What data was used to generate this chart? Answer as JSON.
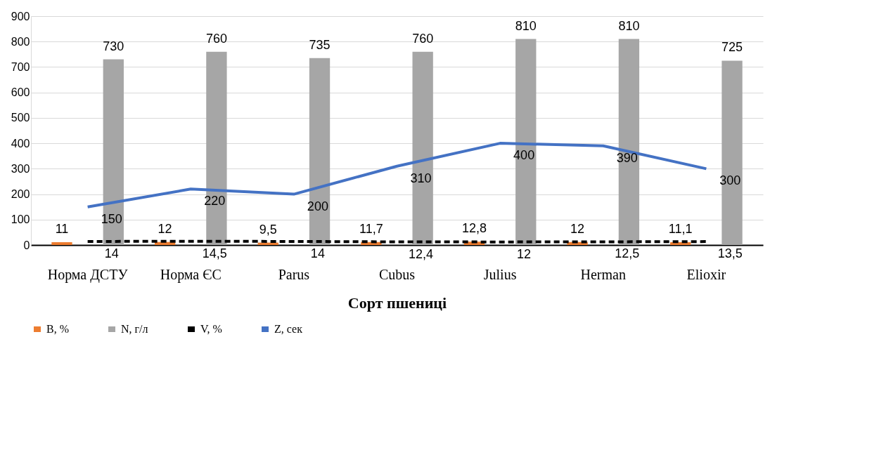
{
  "chart_data": {
    "type": "bar",
    "xlabel": "Сорт пшениці",
    "categories": [
      "Норма ДСТУ",
      "Норма ЄС",
      "Parus",
      "Cubus",
      "Julius",
      "Herman",
      "Elioxir"
    ],
    "series": [
      {
        "name": "B, %",
        "type": "bar",
        "color": "#ed7d31",
        "values": [
          11,
          12,
          9.5,
          11.7,
          12.8,
          12,
          11.1
        ],
        "value_labels": [
          "11",
          "12",
          "9,5",
          "11,7",
          "12,8",
          "12",
          "11,1"
        ]
      },
      {
        "name": "N, г/л",
        "type": "bar",
        "color": "#a6a6a6",
        "values": [
          730,
          760,
          735,
          760,
          810,
          810,
          725
        ],
        "value_labels": [
          "730",
          "760",
          "735",
          "760",
          "810",
          "810",
          "725"
        ]
      },
      {
        "name": "V, %",
        "type": "line",
        "color": "#000000",
        "line_style": "dashed",
        "values": [
          14,
          14.5,
          14,
          12.4,
          12,
          12.5,
          13.5
        ],
        "value_labels": [
          "14",
          "14,5",
          "14",
          "12,4",
          "12",
          "12,5",
          "13,5"
        ]
      },
      {
        "name": "Z, сек",
        "type": "line",
        "color": "#4472c4",
        "line_style": "solid",
        "values": [
          150,
          220,
          200,
          310,
          400,
          390,
          300
        ],
        "value_labels": [
          "150",
          "220",
          "200",
          "310",
          "400",
          "390",
          "300"
        ]
      }
    ],
    "ylim": [
      0,
      900
    ],
    "yticks": [
      0,
      100,
      200,
      300,
      400,
      500,
      600,
      700,
      800,
      900
    ],
    "grid": "y",
    "legend": "bottom",
    "marker": "none"
  }
}
